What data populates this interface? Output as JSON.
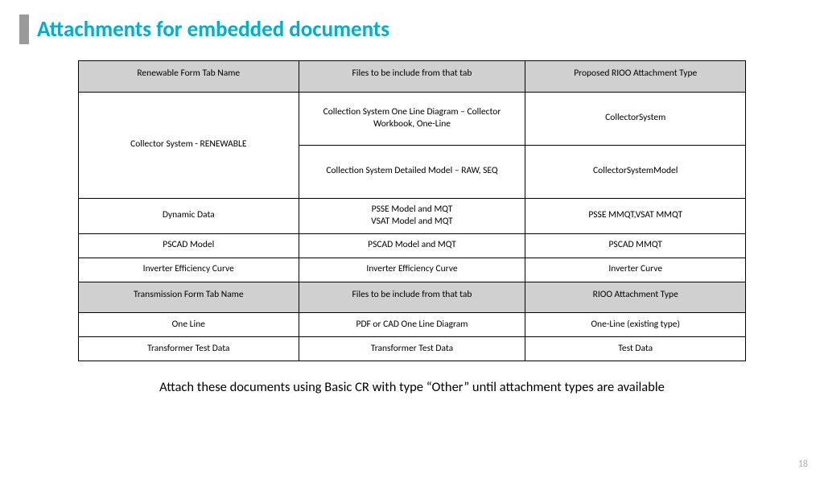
{
  "title": "Attachments for embedded documents",
  "title_color": "#00b0ca",
  "bar_color": "#9a9a9a",
  "header_bg": "#d0d0d0",
  "border_color": "#000000",
  "background_color": "#ffffff",
  "footnote": "Attach these documents using Basic CR with type “Other” until attachment types are available",
  "page_number": "18",
  "table": {
    "col_widths_pct": [
      33,
      34,
      33
    ],
    "header1": [
      "Renewable Form Tab Name",
      "Files to be include from that tab",
      "Proposed RIOO Attachment Type"
    ],
    "row_collector_name": "Collector System - RENEWABLE",
    "row_collector_a_file": "Collection System One Line Diagram – Collector Workbook, One-Line",
    "row_collector_a_type": "CollectorSystem",
    "row_collector_b_file": "Collection System Detailed Model – RAW, SEQ",
    "row_collector_b_type": "CollectorSystemModel",
    "row_dyn": [
      "Dynamic Data",
      "PSSE Model and MQT\nVSAT Model and MQT",
      "PSSE MMQT,VSAT MMQT"
    ],
    "row_pscad": [
      "PSCAD Model",
      "PSCAD Model and MQT",
      "PSCAD MMQT"
    ],
    "row_inv": [
      "Inverter Efficiency Curve",
      "Inverter Efficiency Curve",
      "Inverter Curve"
    ],
    "header2": [
      "Transmission Form Tab Name",
      "Files to be include from that tab",
      "RIOO Attachment Type"
    ],
    "row_oneline": [
      "One Line",
      "PDF or CAD One Line Diagram",
      "One-Line (existing type)"
    ],
    "row_xfmr": [
      "Transformer Test Data",
      "Transformer Test Data",
      "Test Data"
    ]
  }
}
